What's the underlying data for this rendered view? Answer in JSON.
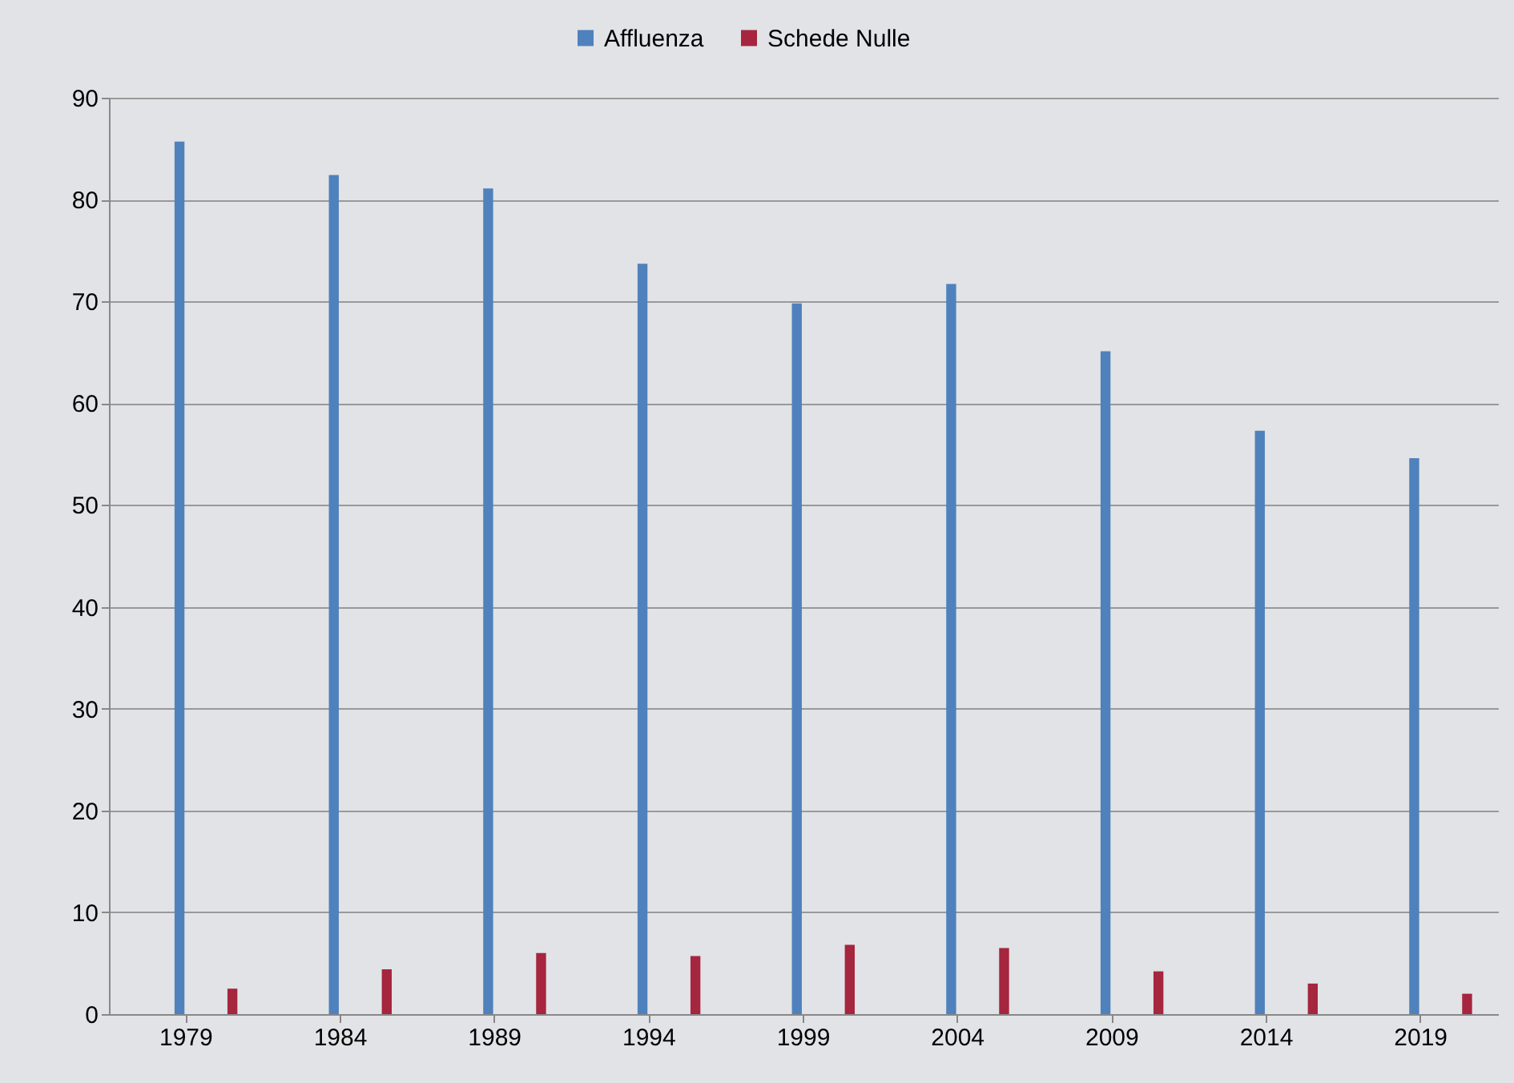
{
  "chart_data": {
    "type": "bar",
    "categories": [
      "1979",
      "1984",
      "1989",
      "1994",
      "1999",
      "2004",
      "2009",
      "2014",
      "2019"
    ],
    "series": [
      {
        "name": "Affluenza",
        "color": "#4f81bd",
        "values": [
          85.7,
          82.4,
          81.1,
          73.7,
          69.8,
          71.7,
          65.1,
          57.3,
          54.6
        ]
      },
      {
        "name": "Schede Nulle",
        "color": "#a6253f",
        "values": [
          2.5,
          4.4,
          6.0,
          5.7,
          6.8,
          6.5,
          4.2,
          3.0,
          2.0
        ]
      }
    ],
    "ylim": [
      0,
      90
    ],
    "yticks": [
      0,
      10,
      20,
      30,
      40,
      50,
      60,
      70,
      80,
      90
    ],
    "grid": "y",
    "legend": "top"
  }
}
